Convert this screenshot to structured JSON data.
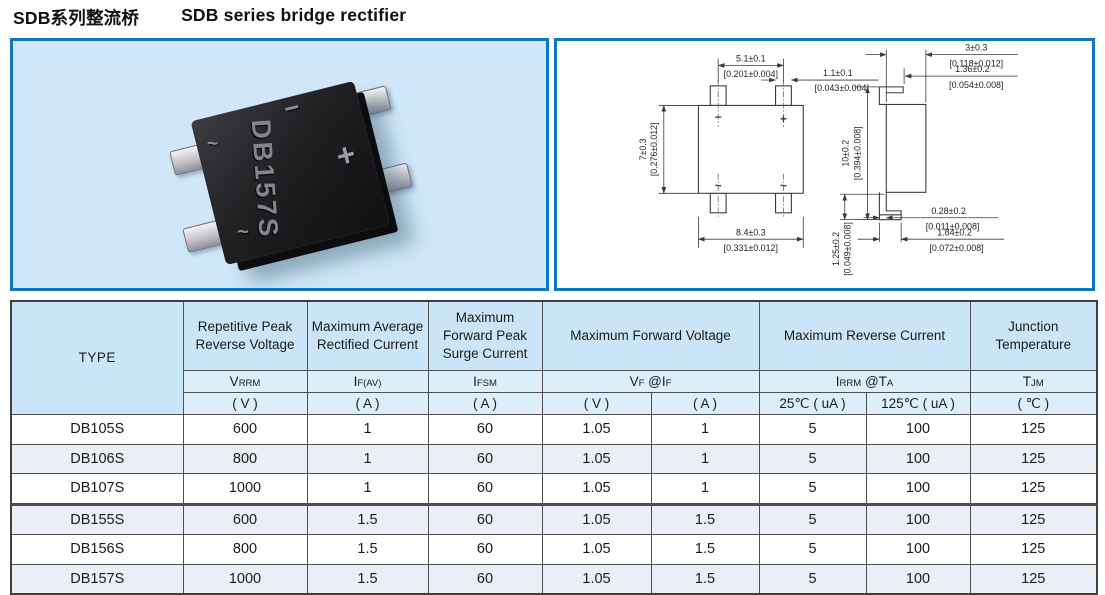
{
  "header": {
    "title_zh": "SDB系列整流桥",
    "title_en": "SDB series bridge rectifier"
  },
  "colors": {
    "accent_blue": "#0d76c2",
    "photo_panel_bg": "#cfe7f8",
    "table_header_bg": "#c9e5f7",
    "table_subheader_bg": "#ddeefb",
    "row_tint": "#e9eff5",
    "table_border": "#4f4f4f"
  },
  "photo": {
    "part_marking": "DB157S",
    "mark_minus": "−",
    "mark_plus": "+",
    "mark_ac1": "~",
    "mark_ac2": "~"
  },
  "drawing": {
    "front": {
      "mark_minus": "−",
      "mark_plus": "+",
      "mark_ac1": "~",
      "mark_ac2": "~",
      "pitch_mm": "5.1±0.1",
      "pitch_in": "[0.201±0.004]",
      "lead_w_mm": "1.1±0.1",
      "lead_w_in": "[0.043±0.004]",
      "height_mm": "7±0.3",
      "height_in": "[0.276±0.012]",
      "width_mm": "8.4±0.3",
      "width_in": "[0.331±0.012]"
    },
    "side": {
      "thick_mm": "3±0.3",
      "thick_in": "[0.118±0.012]",
      "lead_off_mm": "1.36±0.2",
      "lead_off_in": "[0.054±0.008]",
      "total_h_mm": "10±0.2",
      "total_h_in": "[0.394±0.008]",
      "foot_t_mm": "0.28±0.2",
      "foot_t_in": "[0.011±0.008]",
      "foot_l_mm": "1.84±0.2",
      "foot_l_in": "[0.072±0.008]",
      "standoff_mm": "1.25±0.2",
      "standoff_in": "[0.049±0.008]"
    }
  },
  "table": {
    "type_header": "TYPE",
    "col_titles": [
      "Repetitive Peak Reverse Voltage",
      "Maximum Average Rectified Current",
      "Maximum Forward Peak Surge Current",
      "Maximum Forward Voltage",
      "Maximum Reverse Current",
      "Junction Temperature"
    ],
    "symbols": [
      [
        {
          "t": "V"
        },
        {
          "s": "RRM"
        }
      ],
      [
        {
          "t": "I"
        },
        {
          "s": "F(AV)"
        }
      ],
      [
        {
          "t": "I"
        },
        {
          "s": "FSM"
        }
      ],
      [
        {
          "t": "V"
        },
        {
          "s": "F"
        },
        {
          "t": " @I"
        },
        {
          "s": "F"
        }
      ],
      [
        {
          "t": "I"
        },
        {
          "s": "RRM"
        },
        {
          "t": " @T"
        },
        {
          "s": "A"
        }
      ],
      [
        {
          "t": "T"
        },
        {
          "s": "JM"
        }
      ]
    ],
    "units": [
      "( V )",
      "( A )",
      "( A )",
      "( V )",
      "( A )",
      "25℃ ( uA )",
      "125℃ ( uA )",
      "( ℃ )"
    ],
    "rows": [
      {
        "cells": [
          "DB105S",
          "600",
          "1",
          "60",
          "1.05",
          "1",
          "5",
          "100",
          "125"
        ]
      },
      {
        "cells": [
          "DB106S",
          "800",
          "1",
          "60",
          "1.05",
          "1",
          "5",
          "100",
          "125"
        ]
      },
      {
        "cells": [
          "DB107S",
          "1000",
          "1",
          "60",
          "1.05",
          "1",
          "5",
          "100",
          "125"
        ]
      },
      {
        "cells": [
          "DB155S",
          "600",
          "1.5",
          "60",
          "1.05",
          "1.5",
          "5",
          "100",
          "125"
        ]
      },
      {
        "cells": [
          "DB156S",
          "800",
          "1.5",
          "60",
          "1.05",
          "1.5",
          "5",
          "100",
          "125"
        ]
      },
      {
        "cells": [
          "DB157S",
          "1000",
          "1.5",
          "60",
          "1.05",
          "1.5",
          "5",
          "100",
          "125"
        ]
      }
    ]
  }
}
